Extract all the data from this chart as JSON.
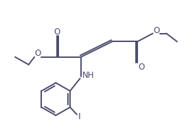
{
  "bg_color": "#ffffff",
  "line_color": "#4a4a6a",
  "line_width": 1.4,
  "font_size": 8.5,
  "fig_width": 2.84,
  "fig_height": 1.96,
  "dpi": 100,
  "xlim": [
    0,
    10
  ],
  "ylim": [
    0,
    7
  ]
}
